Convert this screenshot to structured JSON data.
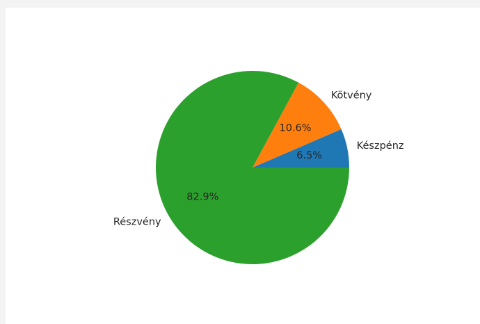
{
  "chart_data": {
    "type": "pie",
    "title": "",
    "labels": [
      "Készpénz",
      "Kötvény",
      "Részvény"
    ],
    "values": [
      6.5,
      10.6,
      82.9
    ],
    "percent_labels": [
      "6.5%",
      "10.6%",
      "82.9%"
    ],
    "colors": [
      "#1f77b4",
      "#ff7f0e",
      "#2ca02c"
    ],
    "start_angle_deg": 0,
    "direction": "counterclockwise",
    "legend": "none"
  }
}
